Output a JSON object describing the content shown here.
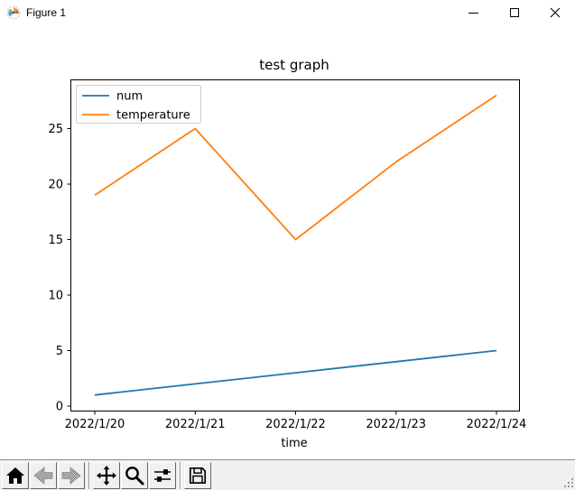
{
  "window": {
    "title": "Figure 1",
    "app_icon": "matplotlib-logo-icon",
    "controls": [
      {
        "name": "minimize",
        "icon": "minimize-icon"
      },
      {
        "name": "maximize",
        "icon": "maximize-icon"
      },
      {
        "name": "close",
        "icon": "close-icon"
      }
    ]
  },
  "chart_data": {
    "type": "line",
    "title": "test graph",
    "xlabel": "time",
    "ylabel": "",
    "categories": [
      "2022/1/20",
      "2022/1/21",
      "2022/1/22",
      "2022/1/23",
      "2022/1/24"
    ],
    "series": [
      {
        "name": "num",
        "color": "#1f77b4",
        "values": [
          1,
          2,
          3,
          4,
          5
        ]
      },
      {
        "name": "temperature",
        "color": "#ff7f0e",
        "values": [
          19,
          25,
          15,
          22,
          28
        ]
      }
    ],
    "yticks": [
      0,
      5,
      10,
      15,
      20,
      25
    ],
    "ylim": [
      -0.4,
      29.4
    ],
    "xlim": [
      -0.24,
      4.22
    ],
    "grid": false,
    "legend_position": "upper left",
    "legend_border_color": "#cccccc",
    "axes_color": "#000000",
    "background_color": "#ffffff"
  },
  "toolbar": {
    "background": "#f0f0f0",
    "buttons": [
      {
        "name": "home",
        "icon": "home-icon",
        "disabled": false
      },
      {
        "name": "back",
        "icon": "back-arrow-icon",
        "disabled": true
      },
      {
        "name": "forward",
        "icon": "forward-arrow-icon",
        "disabled": true
      },
      {
        "name": "pan",
        "icon": "pan-arrows-icon",
        "disabled": false
      },
      {
        "name": "zoom",
        "icon": "zoom-rect-icon",
        "disabled": false
      },
      {
        "name": "configure-subplots",
        "icon": "sliders-icon",
        "disabled": false
      },
      {
        "name": "save",
        "icon": "save-floppy-icon",
        "disabled": false
      }
    ]
  }
}
